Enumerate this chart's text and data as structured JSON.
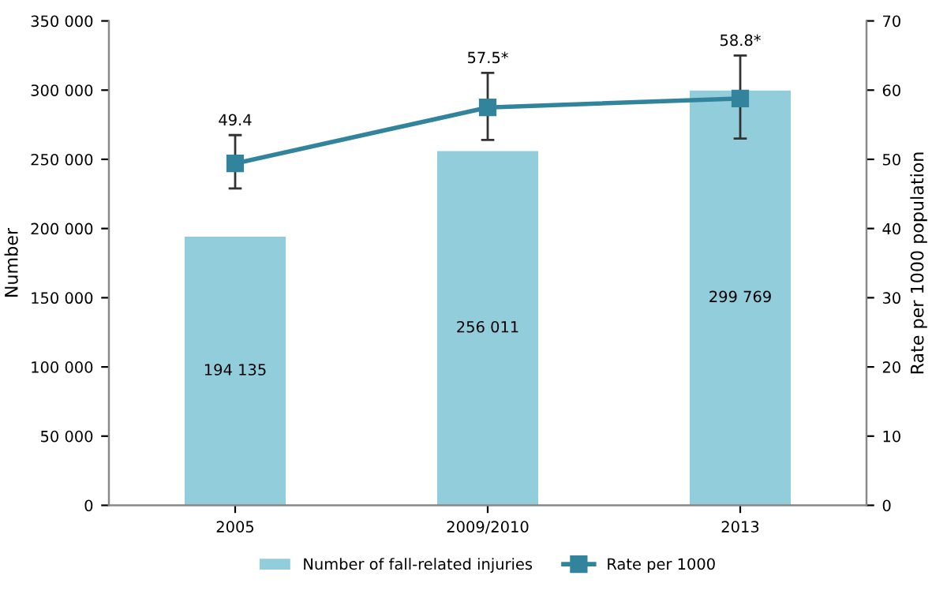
{
  "chart_data": {
    "type": "bar",
    "categories": [
      "2005",
      "2009/2010",
      "2013"
    ],
    "ylabel": "Number",
    "y2label": "Rate per 1000 population",
    "series": [
      {
        "name": "Number of fall-related injuries",
        "color": "#92cddc",
        "values": [
          194135,
          256011,
          299769
        ],
        "value_labels": [
          "194 135",
          "256 011",
          "299 769"
        ]
      },
      {
        "name": "Rate per 1000",
        "type": "line",
        "axis": "y2",
        "color": "#31849b",
        "values": [
          49.4,
          57.5,
          58.8
        ],
        "errors": [
          [
            45.8,
            53.5
          ],
          [
            52.8,
            62.5
          ],
          [
            53.0,
            65.0
          ]
        ],
        "value_labels": [
          "49.4",
          "57.5*",
          "58.8*"
        ]
      }
    ],
    "ylim": [
      0,
      350000
    ],
    "yticks": [
      0,
      {
        "value": 50000,
        "label": "50 000"
      },
      {
        "value": 100000,
        "label": "100 000"
      },
      {
        "value": 150000,
        "label": "150 000"
      },
      {
        "value": 200000,
        "label": "200 000"
      },
      {
        "value": 250000,
        "label": "250 000"
      },
      {
        "value": 300000,
        "label": "300 000"
      },
      {
        "value": 350000,
        "label": "350 000"
      }
    ],
    "y2lim": [
      0,
      70
    ],
    "y2ticks": [
      0,
      10,
      20,
      30,
      40,
      50,
      60,
      70
    ],
    "marker": "square",
    "legend": "bottom",
    "grid": false
  }
}
